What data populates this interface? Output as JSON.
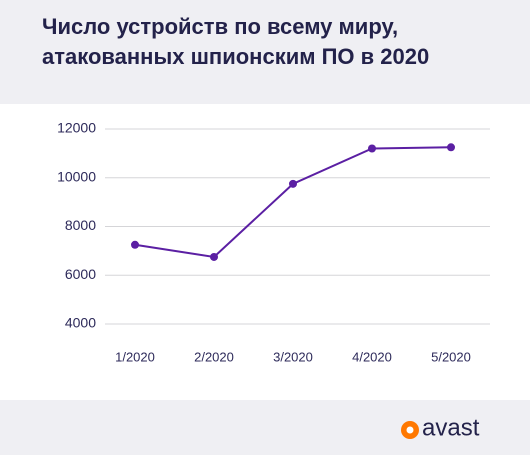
{
  "chart_data": {
    "type": "line",
    "title": [
      "Число устройств по всему миру,",
      "атакованных шпионским ПО в 2020"
    ],
    "categories": [
      "1/2020",
      "2/2020",
      "3/2020",
      "4/2020",
      "5/2020"
    ],
    "values": [
      7250,
      6750,
      9750,
      11200,
      11250
    ],
    "color": "#5b1fa3",
    "ylim": [
      4000,
      12000
    ],
    "yticks": [
      4000,
      6000,
      8000,
      10000,
      12000
    ],
    "grid": true
  },
  "logo": "avast"
}
